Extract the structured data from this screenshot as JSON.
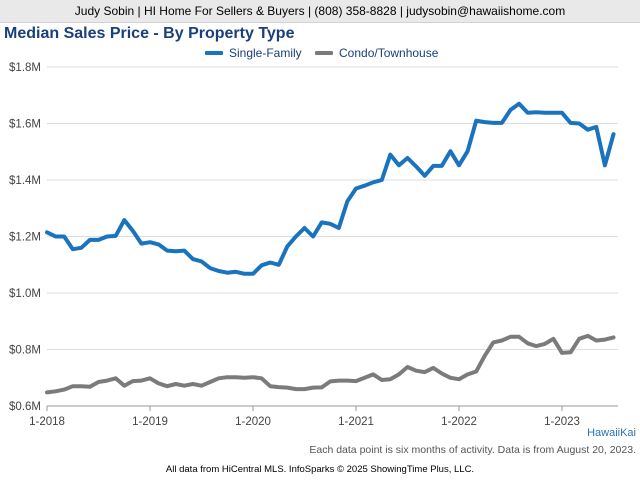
{
  "header": {
    "contact_line": "Judy Sobin | HI Home For Sellers & Buyers | (808) 358-8828 | judysobin@hawaiishome.com"
  },
  "chart_data": {
    "type": "line",
    "title": "Median Sales Price - By Property Type",
    "xlabel": "",
    "ylabel": "",
    "x_start": "2018-01",
    "x_interval": "1 month",
    "x_ticks": [
      "1-2018",
      "1-2019",
      "1-2020",
      "1-2021",
      "1-2022",
      "1-2023"
    ],
    "y_ticks": [
      "$0.6M",
      "$0.8M",
      "$1.0M",
      "$1.2M",
      "$1.4M",
      "$1.6M",
      "$1.8M"
    ],
    "ylim": [
      600000,
      1800000
    ],
    "grid": true,
    "legend_position": "top-center",
    "series": [
      {
        "name": "Single-Family",
        "color": "#1a73be",
        "values": [
          1215000,
          1200000,
          1200000,
          1155000,
          1160000,
          1188000,
          1188000,
          1200000,
          1202000,
          1258000,
          1220000,
          1175000,
          1180000,
          1172000,
          1150000,
          1148000,
          1150000,
          1120000,
          1112000,
          1088000,
          1078000,
          1072000,
          1075000,
          1068000,
          1068000,
          1098000,
          1108000,
          1100000,
          1165000,
          1200000,
          1230000,
          1200000,
          1250000,
          1245000,
          1230000,
          1325000,
          1370000,
          1380000,
          1392000,
          1400000,
          1490000,
          1452000,
          1478000,
          1448000,
          1415000,
          1450000,
          1450000,
          1502000,
          1452000,
          1502000,
          1610000,
          1605000,
          1602000,
          1602000,
          1648000,
          1670000,
          1638000,
          1640000,
          1638000,
          1638000,
          1638000,
          1602000,
          1600000,
          1578000,
          1588000,
          1452000,
          1562000
        ]
      },
      {
        "name": "Condo/Townhouse",
        "color": "#7b7b7b",
        "values": [
          648000,
          652000,
          658000,
          670000,
          670000,
          668000,
          685000,
          690000,
          698000,
          672000,
          688000,
          690000,
          698000,
          680000,
          670000,
          678000,
          672000,
          678000,
          672000,
          685000,
          698000,
          702000,
          702000,
          700000,
          702000,
          698000,
          670000,
          667000,
          665000,
          660000,
          660000,
          665000,
          666000,
          687000,
          690000,
          690000,
          688000,
          700000,
          712000,
          692000,
          695000,
          712000,
          738000,
          725000,
          720000,
          735000,
          715000,
          700000,
          695000,
          712000,
          722000,
          778000,
          825000,
          832000,
          845000,
          845000,
          822000,
          812000,
          820000,
          838000,
          788000,
          790000,
          838000,
          848000,
          832000,
          835000,
          843000
        ]
      }
    ]
  },
  "notes": {
    "data_note": "Each data point is six months of activity. Data is from August 20, 2023.",
    "area_name": "HawaiiKai",
    "copyright": "All data from HiCentral MLS. InfoSparks © 2025 ShowingTime Plus, LLC."
  }
}
